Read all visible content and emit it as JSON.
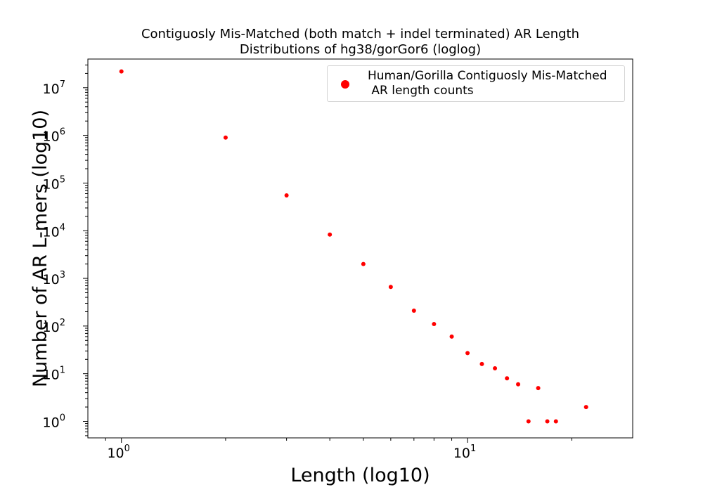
{
  "chart_data": {
    "type": "scatter",
    "title": "Contiguosly Mis-Matched (both match + indel terminated) AR Length\nDistributions of hg38/gorGor6 (loglog)",
    "xlabel": "Length (log10)",
    "ylabel": "Number of AR L-mers (log10)",
    "xscale": "log",
    "yscale": "log",
    "xlim": [
      0.8,
      30
    ],
    "ylim": [
      0.45,
      40000000
    ],
    "grid": false,
    "legend_position": "top-right",
    "x_ticks": [
      {
        "base": "10",
        "exp": "0"
      },
      {
        "base": "10",
        "exp": "1"
      }
    ],
    "y_ticks": [
      {
        "base": "10",
        "exp": "0"
      },
      {
        "base": "10",
        "exp": "1"
      },
      {
        "base": "10",
        "exp": "2"
      },
      {
        "base": "10",
        "exp": "3"
      },
      {
        "base": "10",
        "exp": "4"
      },
      {
        "base": "10",
        "exp": "5"
      },
      {
        "base": "10",
        "exp": "6"
      },
      {
        "base": "10",
        "exp": "7"
      }
    ],
    "series": [
      {
        "name": "Human/Gorilla Contiguosly Mis-Matched\n AR length counts",
        "color": "#ff0000",
        "x": [
          1,
          2,
          3,
          4,
          5,
          6,
          7,
          8,
          9,
          10,
          11,
          12,
          13,
          14,
          15,
          16,
          17,
          18,
          22
        ],
        "y": [
          22000000,
          900000,
          55000,
          8300,
          2000,
          660,
          210,
          110,
          60,
          27,
          16,
          13,
          8,
          6,
          1,
          5,
          1,
          1,
          2
        ]
      }
    ]
  }
}
